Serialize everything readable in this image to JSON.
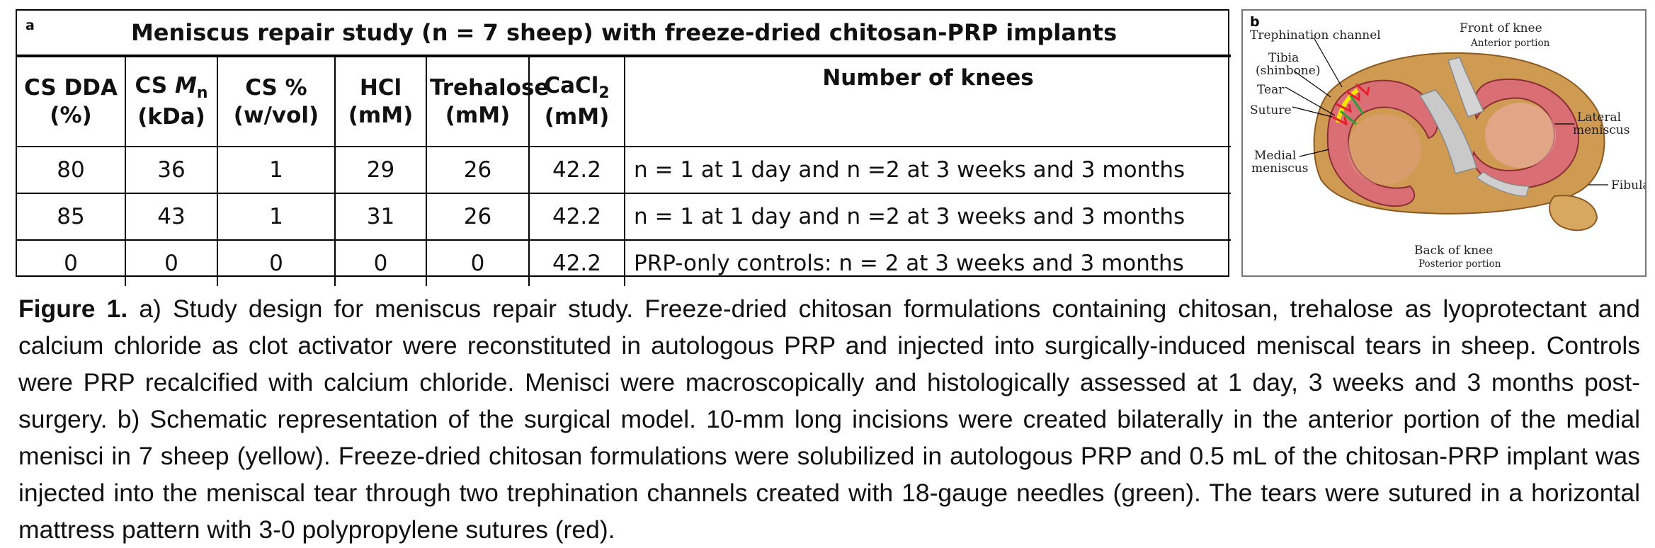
{
  "panel_a": {
    "letter": "a",
    "title": "Meniscus repair study (n = 7 sheep) with freeze-dried chitosan-PRP implants",
    "columns": [
      {
        "line1": "CS DDA",
        "line2": "(%)"
      },
      {
        "line1": "CS ",
        "line1_italic": "M",
        "line1_sub": "n",
        "line2": "(kDa)"
      },
      {
        "line1": "CS %",
        "line2": "(w/vol)"
      },
      {
        "line1": "HCl",
        "line2": "(mM)"
      },
      {
        "line1": "Trehalose",
        "line2": "(mM)"
      },
      {
        "line1": "CaCl",
        "line1_sub": "2",
        "line2": "(mM)"
      },
      {
        "line1": "Number of knees",
        "line2": ""
      }
    ],
    "rows": [
      [
        "80",
        "36",
        "1",
        "29",
        "26",
        "42.2",
        "n = 1 at 1 day and n =2 at 3 weeks and 3 months"
      ],
      [
        "85",
        "43",
        "1",
        "31",
        "26",
        "42.2",
        "n = 1 at 1 day and n =2 at 3 weeks and 3 months"
      ],
      [
        "0",
        "0",
        "0",
        "0",
        "0",
        "42.2",
        "PRP-only controls: n = 2 at 3 weeks and 3 months"
      ]
    ]
  },
  "panel_b": {
    "letter": "b",
    "labels": {
      "trephination": "Trephination channel",
      "front": "Front of knee",
      "anterior": "Anterior portion",
      "tibia_1": "Tibia",
      "tibia_2": "(shinbone)",
      "tear": "Tear",
      "suture": "Suture",
      "lateral_1": "Lateral",
      "lateral_2": "meniscus",
      "medial_1": "Medial",
      "medial_2": "meniscus",
      "fibula": "Fibula",
      "back": "Back of knee",
      "posterior": "Posterior portion"
    },
    "colors": {
      "meniscus": "#d96f74",
      "meniscus_light": "#f0b0b0",
      "bone": "#cf9a52",
      "tendon": "#c9c9c9",
      "incision": "#f2e600",
      "suture": "#e8202a",
      "channel": "#2e9e3a"
    }
  },
  "caption": {
    "label": "Figure 1.",
    "text": " a) Study design for meniscus repair study. Freeze-dried chitosan formulations containing chitosan, trehalose as lyoprotectant and calcium chloride as clot activator were reconstituted in autologous PRP and injected into surgically-induced meniscal tears in sheep. Controls were PRP recalcified with calcium chloride. Menisci were macroscopically and histologically assessed at 1 day,  3 weeks and 3 months post-surgery. b) Schematic representation of the surgical model. 10-mm long incisions were created bilaterally in the anterior portion of the medial menisci in 7 sheep (yellow). Freeze-dried chitosan formulations were solubilized in autologous PRP and 0.5 mL of the chitosan-PRP implant was injected into the meniscal tear through two trephination channels created with 18-gauge needles (green). The tears were sutured in a horizontal mattress pattern with 3-0 polypropylene sutures (red)."
  }
}
